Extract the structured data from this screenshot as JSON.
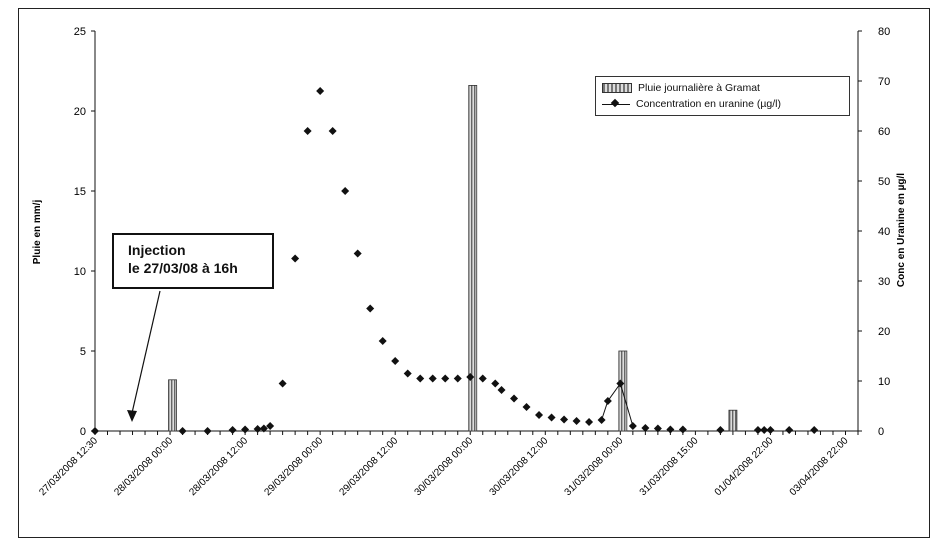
{
  "chart_data": {
    "type": "bar+scatter",
    "y_left_label": "Pluie en mm/j",
    "y_right_label": "Conc en Uranine en µg/l",
    "y_left_lim": [
      0,
      25
    ],
    "y_right_lim": [
      0,
      80
    ],
    "y_left_ticks": [
      "0",
      "5",
      "10",
      "15",
      "20",
      "25"
    ],
    "y_right_ticks": [
      "0",
      "10",
      "20",
      "30",
      "40",
      "50",
      "60",
      "70",
      "80"
    ],
    "x_tick_labels": [
      "27/03/2008 12:30",
      "28/03/2008 00:00",
      "28/03/2008 12:00",
      "29/03/2008 00:00",
      "29/03/2008 12:00",
      "30/03/2008 00:00",
      "30/03/2008 12:00",
      "31/03/2008 00:00",
      "31/03/2008 15:00",
      "01/04/2008 22:00",
      "03/04/2008 22:00"
    ],
    "x_index_max": 61,
    "rain_series": {
      "name": "Pluie journalière à Gramat",
      "points": [
        {
          "x": 6.2,
          "y": 3.2
        },
        {
          "x": 30.2,
          "y": 21.6
        },
        {
          "x": 42.2,
          "y": 5.0
        },
        {
          "x": 51,
          "y": 1.3
        }
      ]
    },
    "uranine_series": {
      "name": "Concentration en uranine (µg/l)",
      "points": [
        {
          "x": 0,
          "y": 0
        },
        {
          "x": 7,
          "y": 0
        },
        {
          "x": 9,
          "y": 0
        },
        {
          "x": 11,
          "y": 0.2
        },
        {
          "x": 12,
          "y": 0.3
        },
        {
          "x": 13,
          "y": 0.4
        },
        {
          "x": 13.5,
          "y": 0.5
        },
        {
          "x": 14,
          "y": 1
        },
        {
          "x": 15,
          "y": 9.5
        },
        {
          "x": 16,
          "y": 34.5
        },
        {
          "x": 17,
          "y": 60
        },
        {
          "x": 18,
          "y": 68
        },
        {
          "x": 19,
          "y": 60
        },
        {
          "x": 20,
          "y": 48
        },
        {
          "x": 21,
          "y": 35.5
        },
        {
          "x": 22,
          "y": 24.5
        },
        {
          "x": 23,
          "y": 18
        },
        {
          "x": 24,
          "y": 14
        },
        {
          "x": 25,
          "y": 11.5
        },
        {
          "x": 26,
          "y": 10.5
        },
        {
          "x": 27,
          "y": 10.5
        },
        {
          "x": 28,
          "y": 10.5
        },
        {
          "x": 29,
          "y": 10.5
        },
        {
          "x": 30,
          "y": 10.8
        },
        {
          "x": 31,
          "y": 10.5
        },
        {
          "x": 32,
          "y": 9.5
        },
        {
          "x": 32.5,
          "y": 8.2
        },
        {
          "x": 33.5,
          "y": 6.5
        },
        {
          "x": 34.5,
          "y": 4.8
        },
        {
          "x": 35.5,
          "y": 3.2
        },
        {
          "x": 36.5,
          "y": 2.7
        },
        {
          "x": 37.5,
          "y": 2.3
        },
        {
          "x": 38.5,
          "y": 2.0
        },
        {
          "x": 39.5,
          "y": 1.8
        },
        {
          "x": 40.5,
          "y": 2.2
        },
        {
          "x": 41,
          "y": 6
        },
        {
          "x": 42,
          "y": 9.5
        },
        {
          "x": 43,
          "y": 1.0
        },
        {
          "x": 44,
          "y": 0.6
        },
        {
          "x": 45,
          "y": 0.5
        },
        {
          "x": 46,
          "y": 0.3
        },
        {
          "x": 47,
          "y": 0.3
        },
        {
          "x": 50,
          "y": 0.2
        },
        {
          "x": 53,
          "y": 0.2
        },
        {
          "x": 53.5,
          "y": 0.2
        },
        {
          "x": 54,
          "y": 0.2
        },
        {
          "x": 55.5,
          "y": 0.2
        },
        {
          "x": 57.5,
          "y": 0.2
        }
      ]
    },
    "legend_position": "top-right"
  },
  "annotation": {
    "line1": "Injection",
    "line2": "le 27/03/08 à 16h"
  }
}
